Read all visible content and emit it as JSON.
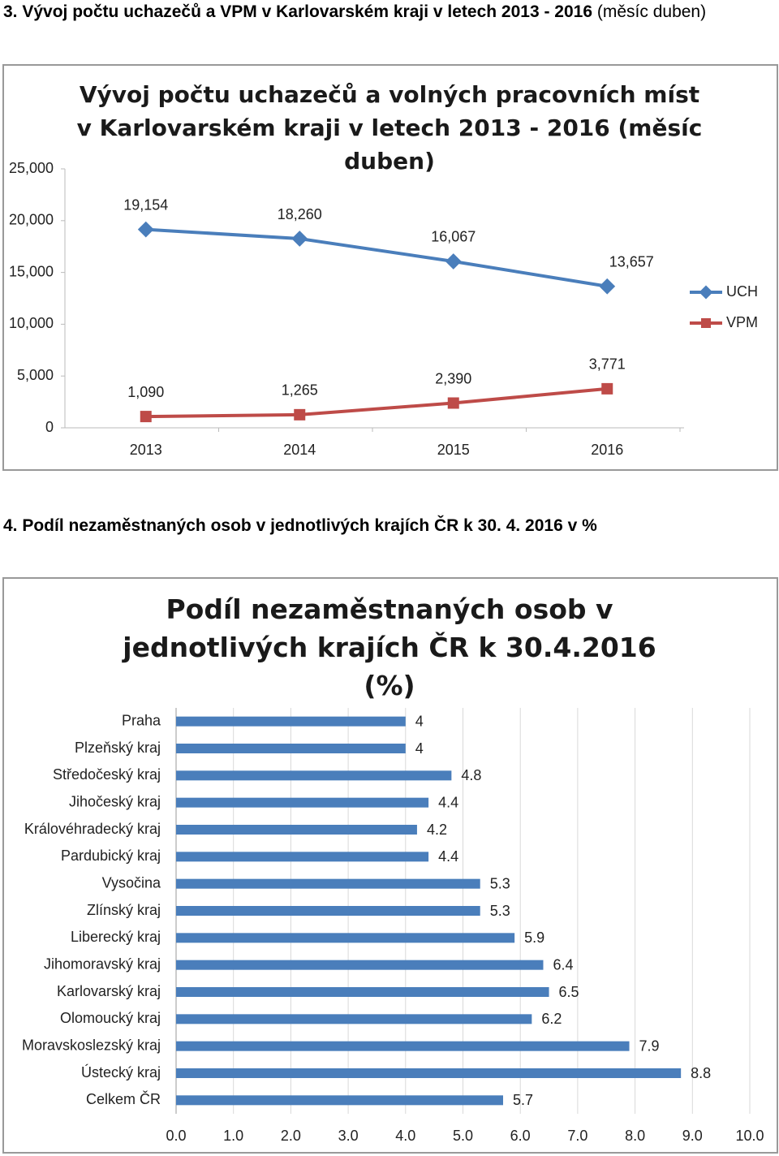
{
  "heading_1": {
    "bold": "3. Vývoj počtu uchazečů a VPM v Karlovarském kraji v letech 2013 - 2016",
    "normal": "(měsíc duben)"
  },
  "heading_2": "4. Podíl nezaměstnaných osob v jednotlivých krajích ČR k 30. 4. 2016 v %",
  "chart_data": [
    {
      "type": "line",
      "title": "Vývoj počtu uchazečů a volných pracovních míst v Karlovarském kraji v letech 2013 - 2016 (měsíc duben)",
      "categories": [
        "2013",
        "2014",
        "2015",
        "2016"
      ],
      "series": [
        {
          "name": "UCH",
          "color": "#4a7ebb",
          "values": [
            19154,
            18260,
            16067,
            13657
          ],
          "value_labels": [
            "19,154",
            "18,260",
            "16,067",
            "13,657"
          ]
        },
        {
          "name": "VPM",
          "color": "#be4b48",
          "values": [
            1090,
            1265,
            2390,
            3771
          ],
          "value_labels": [
            "1,090",
            "1,265",
            "2,390",
            "3,771"
          ]
        }
      ],
      "ylim": [
        0,
        25000
      ],
      "yticks": [
        0,
        {
          "value": 5000,
          "label": "5,000"
        },
        {
          "value": 10000,
          "label": "10,000"
        },
        {
          "value": 15000,
          "label": "15,000"
        },
        {
          "value": 20000,
          "label": "20,000"
        },
        {
          "value": 25000,
          "label": "25,000"
        }
      ],
      "grid": false,
      "legend": "right"
    },
    {
      "type": "hbar",
      "title": "Podíl nezaměstnaných osob v jednotlivých krajích ČR k 30.4.2016 (%)",
      "categories": [
        "Praha",
        "Plzeňský kraj",
        "Středočeský kraj",
        "Jihočeský kraj",
        "Královéhradecký kraj",
        "Pardubický kraj",
        "Vysočina",
        "Zlínský kraj",
        "Liberecký kraj",
        "Jihomoravský kraj",
        "Karlovarský kraj",
        "Olomoucký kraj",
        "Moravskoslezský kraj",
        "Ústecký kraj",
        "Celkem ČR"
      ],
      "values": [
        4,
        4,
        4.8,
        4.4,
        4.2,
        4.4,
        5.3,
        5.3,
        5.9,
        6.4,
        6.5,
        6.2,
        7.9,
        8.8,
        5.7
      ],
      "color": "#4a7ebb",
      "xlim": [
        0,
        10
      ],
      "xticks": [
        {
          "value": 0,
          "label": "0.0"
        },
        {
          "value": 1,
          "label": "1.0"
        },
        {
          "value": 2,
          "label": "2.0"
        },
        {
          "value": 3,
          "label": "3.0"
        },
        {
          "value": 4,
          "label": "4.0"
        },
        {
          "value": 5,
          "label": "5.0"
        },
        {
          "value": 6,
          "label": "6.0"
        },
        {
          "value": 7,
          "label": "7.0"
        },
        {
          "value": 8,
          "label": "8.0"
        },
        {
          "value": 9,
          "label": "9.0"
        },
        {
          "value": 10,
          "label": "10.0"
        }
      ],
      "grid": true
    }
  ]
}
